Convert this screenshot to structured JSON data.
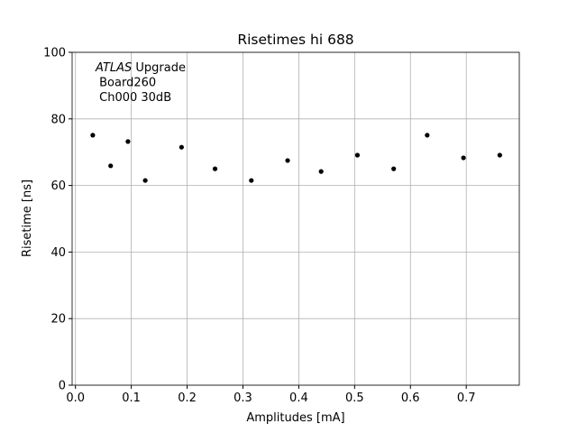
{
  "chart_data": {
    "type": "scatter",
    "title": "Risetimes hi 688",
    "xlabel": "Amplitudes [mA]",
    "ylabel": "Risetime [ns]",
    "annotation": {
      "italic": "ATLAS",
      "lines": [
        " Upgrade",
        " Board260",
        " Ch000 30dB"
      ]
    },
    "series": [
      {
        "color": "#000000",
        "x": [
          0.031,
          0.063,
          0.094,
          0.125,
          0.19,
          0.25,
          0.315,
          0.38,
          0.44,
          0.505,
          0.57,
          0.63,
          0.695,
          0.76
        ],
        "values": [
          75.1,
          65.9,
          73.2,
          61.5,
          71.5,
          65.0,
          61.5,
          67.5,
          64.2,
          69.1,
          65.0,
          75.1,
          68.3,
          69.1
        ]
      }
    ],
    "xlim": [
      -0.006,
      0.795
    ],
    "ylim": [
      0,
      100
    ],
    "xticks": [
      {
        "value": 0,
        "label": "0.0"
      },
      0.1,
      0.2,
      0.3,
      0.4,
      0.5,
      0.6,
      0.7
    ],
    "yticks": [
      0,
      20,
      40,
      60,
      80,
      100
    ],
    "grid": true
  }
}
